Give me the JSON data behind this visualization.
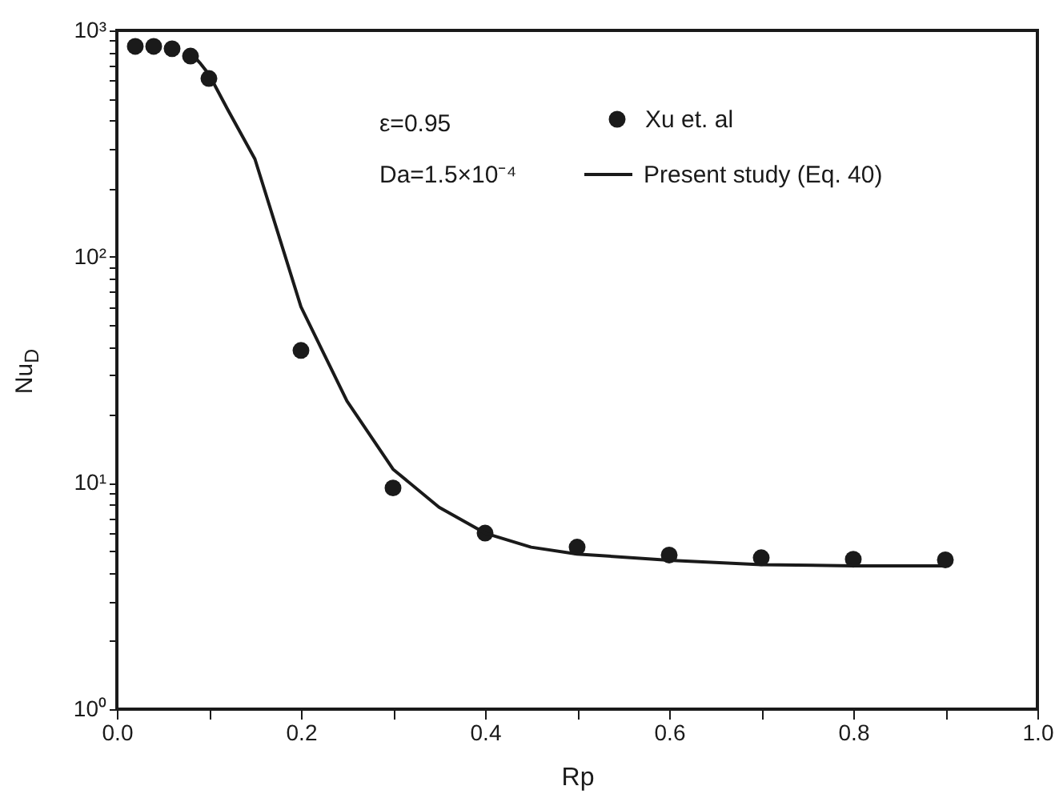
{
  "chart_data": {
    "type": "scatter",
    "xlabel": "Rp",
    "ylabel": "Nu$_{D}$",
    "annotations": [
      "ε=0.95",
      "Da=1.5×10⁻⁴"
    ],
    "series": [
      {
        "name": "Xu et. al",
        "color": "#1a1a1a",
        "marker": "circle",
        "x": [
          0.02,
          0.04,
          0.06,
          0.08,
          0.1,
          0.2,
          0.3,
          0.4,
          0.5,
          0.6,
          0.7,
          0.8,
          0.9
        ],
        "values": [
          850,
          850,
          830,
          770,
          613,
          38.5,
          9.5,
          6.0,
          5.2,
          4.8,
          4.67,
          4.6,
          4.57
        ]
      },
      {
        "name": "Present study (Eq. 40)",
        "type": "line",
        "color": "#1a1a1a",
        "line_style": "solid",
        "x": [
          0.08,
          0.09,
          0.1,
          0.12,
          0.15,
          0.2,
          0.25,
          0.3,
          0.35,
          0.4,
          0.45,
          0.5,
          0.6,
          0.7,
          0.8,
          0.9
        ],
        "values": [
          800,
          720,
          640,
          450,
          270,
          60,
          23,
          11.5,
          7.8,
          6.0,
          5.2,
          4.85,
          4.55,
          4.35,
          4.3,
          4.3
        ]
      }
    ],
    "log": "y",
    "xlim": [
      0,
      1
    ],
    "xticks": [
      {
        "value": 0,
        "label": "0.0"
      },
      {
        "value": 0.1,
        "label": null
      },
      0.2,
      {
        "value": 0.3,
        "label": null
      },
      0.4,
      {
        "value": 0.5,
        "label": null
      },
      0.6,
      {
        "value": 0.7,
        "label": null
      },
      0.8,
      {
        "value": 0.9,
        "label": null
      },
      {
        "value": 1,
        "label": "1.0"
      }
    ],
    "ylim": [
      1,
      1000
    ],
    "yticks": [
      {
        "value": 1,
        "label": "10⁰"
      },
      {
        "value": 2,
        "label": null
      },
      {
        "value": 3,
        "label": null
      },
      {
        "value": 4,
        "label": null
      },
      {
        "value": 5,
        "label": null
      },
      {
        "value": 6,
        "label": null
      },
      {
        "value": 7,
        "label": null
      },
      {
        "value": 8,
        "label": null
      },
      {
        "value": 9,
        "label": null
      },
      {
        "value": 10,
        "label": "10¹"
      },
      {
        "value": 20,
        "label": null
      },
      {
        "value": 30,
        "label": null
      },
      {
        "value": 40,
        "label": null
      },
      {
        "value": 50,
        "label": null
      },
      {
        "value": 60,
        "label": null
      },
      {
        "value": 70,
        "label": null
      },
      {
        "value": 80,
        "label": null
      },
      {
        "value": 90,
        "label": null
      },
      {
        "value": 100,
        "label": "10²"
      },
      {
        "value": 200,
        "label": null
      },
      {
        "value": 300,
        "label": null
      },
      {
        "value": 400,
        "label": null
      },
      {
        "value": 500,
        "label": null
      },
      {
        "value": 600,
        "label": null
      },
      {
        "value": 700,
        "label": null
      },
      {
        "value": 800,
        "label": null
      },
      {
        "value": 900,
        "label": null
      },
      {
        "value": 1000,
        "label": "10³"
      }
    ],
    "grid": false,
    "legend": "top right"
  }
}
